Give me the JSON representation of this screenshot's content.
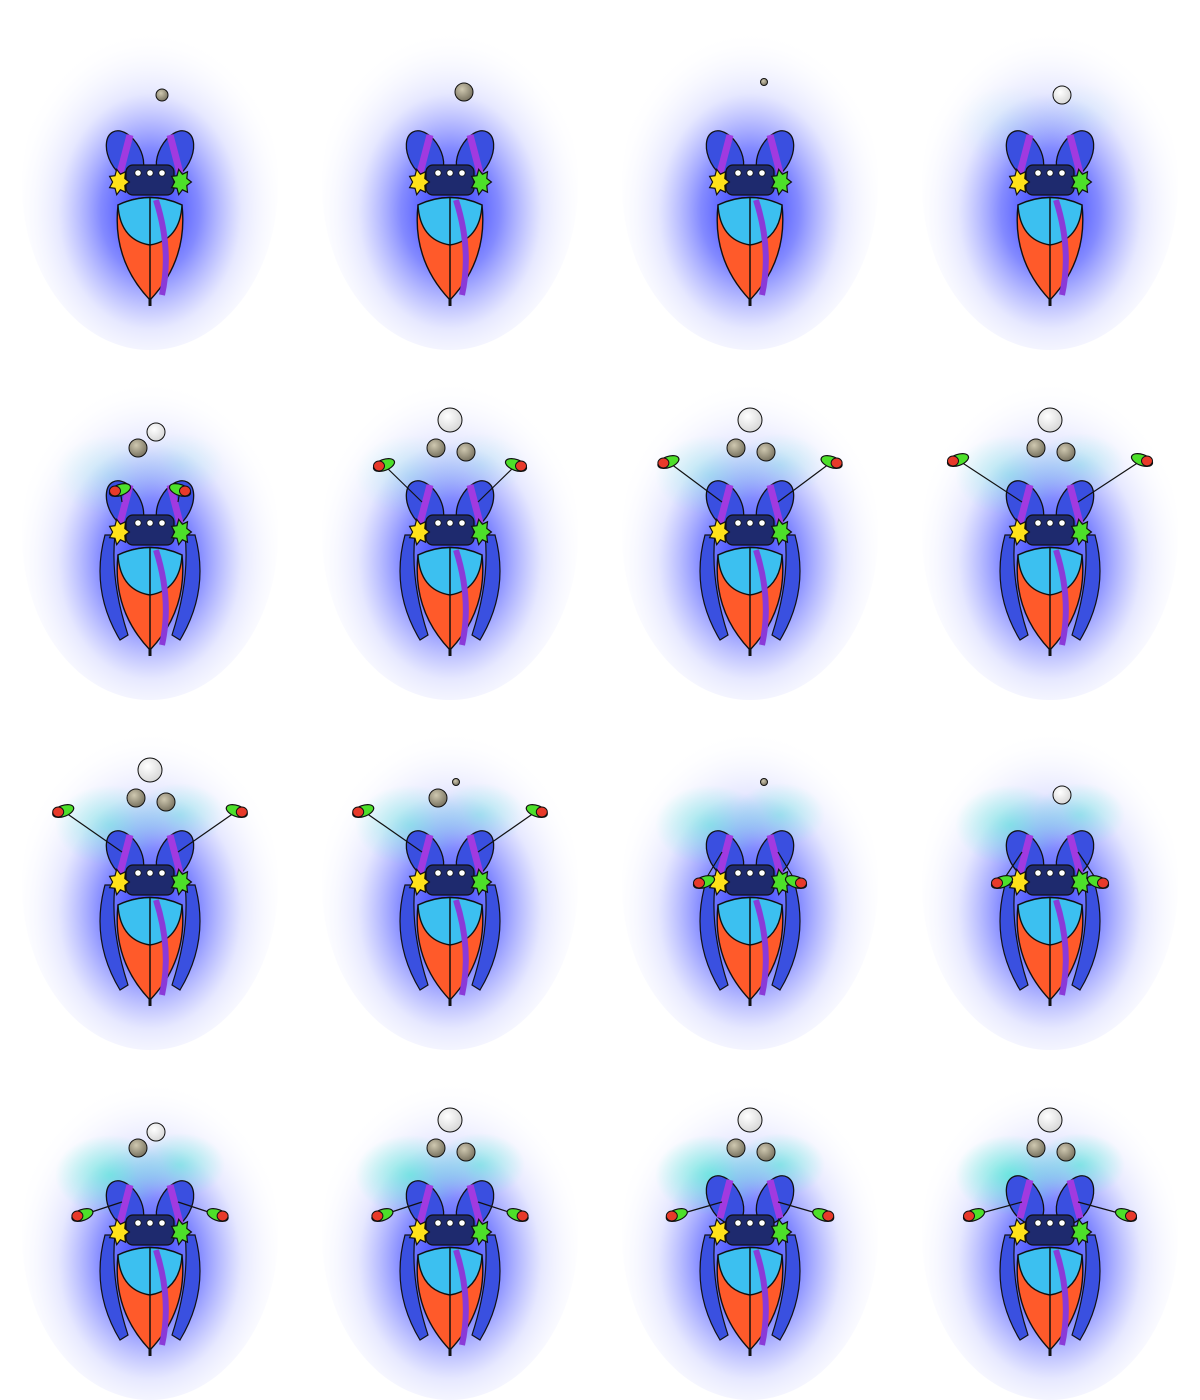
{
  "sheet": {
    "columns": 4,
    "rows": 4,
    "background": "#ffffff"
  },
  "palette": {
    "aura_outer": "#ffffff",
    "aura_mid": "#c8ccff",
    "aura_inner": "#1f2bff",
    "mist": "#3ef0d0",
    "body_top": "#3cc0f0",
    "body_bottom": "#ff5a2a",
    "body_side": "#3a50e0",
    "body_purple": "#8a3ad8",
    "head": "#1e2a6e",
    "ear_blue": "#3a4fe0",
    "ear_purple": "#a13ae0",
    "tuft_yellow": "#ffe21a",
    "tuft_green": "#4de02a",
    "arm_red": "#e83a2a",
    "arm_green": "#4de02a",
    "orb_white": "#ffffff",
    "orb_gray": "#a8a08a",
    "outline": "#111111"
  },
  "frames": [
    {
      "index": 1,
      "arms": "none",
      "arm_reach": 0,
      "mist": 0.0,
      "side_limbs": false,
      "ears_raised": false,
      "orbs": [
        {
          "type": "gray",
          "size": "small"
        }
      ]
    },
    {
      "index": 2,
      "arms": "none",
      "arm_reach": 0,
      "mist": 0.0,
      "side_limbs": false,
      "ears_raised": false,
      "orbs": [
        {
          "type": "gray",
          "size": "medium"
        }
      ]
    },
    {
      "index": 3,
      "arms": "none",
      "arm_reach": 0,
      "mist": 0.0,
      "side_limbs": false,
      "ears_raised": false,
      "orbs": [
        {
          "type": "gray",
          "size": "tiny"
        }
      ]
    },
    {
      "index": 4,
      "arms": "none",
      "arm_reach": 0,
      "mist": 0.1,
      "side_limbs": false,
      "ears_raised": false,
      "orbs": [
        {
          "type": "white",
          "size": "medium"
        }
      ]
    },
    {
      "index": 5,
      "arms": "up",
      "arm_reach": 0.3,
      "mist": 0.2,
      "side_limbs": true,
      "ears_raised": false,
      "orbs": [
        {
          "type": "white",
          "size": "medium"
        },
        {
          "type": "gray",
          "size": "medium"
        }
      ]
    },
    {
      "index": 6,
      "arms": "spread",
      "arm_reach": 0.5,
      "mist": 0.2,
      "side_limbs": true,
      "ears_raised": false,
      "orbs": [
        {
          "type": "white",
          "size": "large"
        },
        {
          "type": "gray",
          "size": "medium"
        },
        {
          "type": "gray",
          "size": "medium"
        }
      ]
    },
    {
      "index": 7,
      "arms": "spread",
      "arm_reach": 0.8,
      "mist": 0.3,
      "side_limbs": true,
      "ears_raised": false,
      "orbs": [
        {
          "type": "white",
          "size": "large"
        },
        {
          "type": "gray",
          "size": "medium"
        },
        {
          "type": "gray",
          "size": "medium"
        }
      ]
    },
    {
      "index": 8,
      "arms": "spread",
      "arm_reach": 1.0,
      "mist": 0.35,
      "side_limbs": true,
      "ears_raised": false,
      "orbs": [
        {
          "type": "white",
          "size": "large"
        },
        {
          "type": "gray",
          "size": "medium"
        },
        {
          "type": "gray",
          "size": "medium"
        }
      ]
    },
    {
      "index": 9,
      "arms": "spread",
      "arm_reach": 0.9,
      "mist": 0.45,
      "side_limbs": true,
      "ears_raised": false,
      "orbs": [
        {
          "type": "white",
          "size": "large"
        },
        {
          "type": "gray",
          "size": "medium"
        },
        {
          "type": "gray",
          "size": "medium"
        }
      ]
    },
    {
      "index": 10,
      "arms": "spread",
      "arm_reach": 0.9,
      "mist": 0.45,
      "side_limbs": true,
      "ears_raised": false,
      "orbs": [
        {
          "type": "gray",
          "size": "tiny"
        },
        {
          "type": "gray",
          "size": "medium"
        }
      ]
    },
    {
      "index": 11,
      "arms": "down",
      "arm_reach": 0.4,
      "mist": 0.5,
      "side_limbs": true,
      "ears_raised": false,
      "orbs": [
        {
          "type": "gray",
          "size": "tiny"
        }
      ]
    },
    {
      "index": 12,
      "arms": "down",
      "arm_reach": 0.5,
      "mist": 0.55,
      "side_limbs": true,
      "ears_raised": false,
      "orbs": [
        {
          "type": "white",
          "size": "medium"
        }
      ]
    },
    {
      "index": 13,
      "arms": "side",
      "arm_reach": 0.7,
      "mist": 0.65,
      "side_limbs": true,
      "ears_raised": false,
      "orbs": [
        {
          "type": "white",
          "size": "medium"
        },
        {
          "type": "gray",
          "size": "medium"
        }
      ]
    },
    {
      "index": 14,
      "arms": "side",
      "arm_reach": 0.7,
      "mist": 0.65,
      "side_limbs": true,
      "ears_raised": false,
      "orbs": [
        {
          "type": "white",
          "size": "large"
        },
        {
          "type": "gray",
          "size": "medium"
        },
        {
          "type": "gray",
          "size": "medium"
        }
      ]
    },
    {
      "index": 15,
      "arms": "side",
      "arm_reach": 0.9,
      "mist": 0.7,
      "side_limbs": true,
      "ears_raised": true,
      "orbs": [
        {
          "type": "white",
          "size": "large"
        },
        {
          "type": "gray",
          "size": "medium"
        },
        {
          "type": "gray",
          "size": "medium"
        }
      ]
    },
    {
      "index": 16,
      "arms": "side",
      "arm_reach": 1.0,
      "mist": 0.75,
      "side_limbs": true,
      "ears_raised": true,
      "orbs": [
        {
          "type": "white",
          "size": "large"
        },
        {
          "type": "gray",
          "size": "medium"
        },
        {
          "type": "gray",
          "size": "medium"
        }
      ]
    }
  ]
}
